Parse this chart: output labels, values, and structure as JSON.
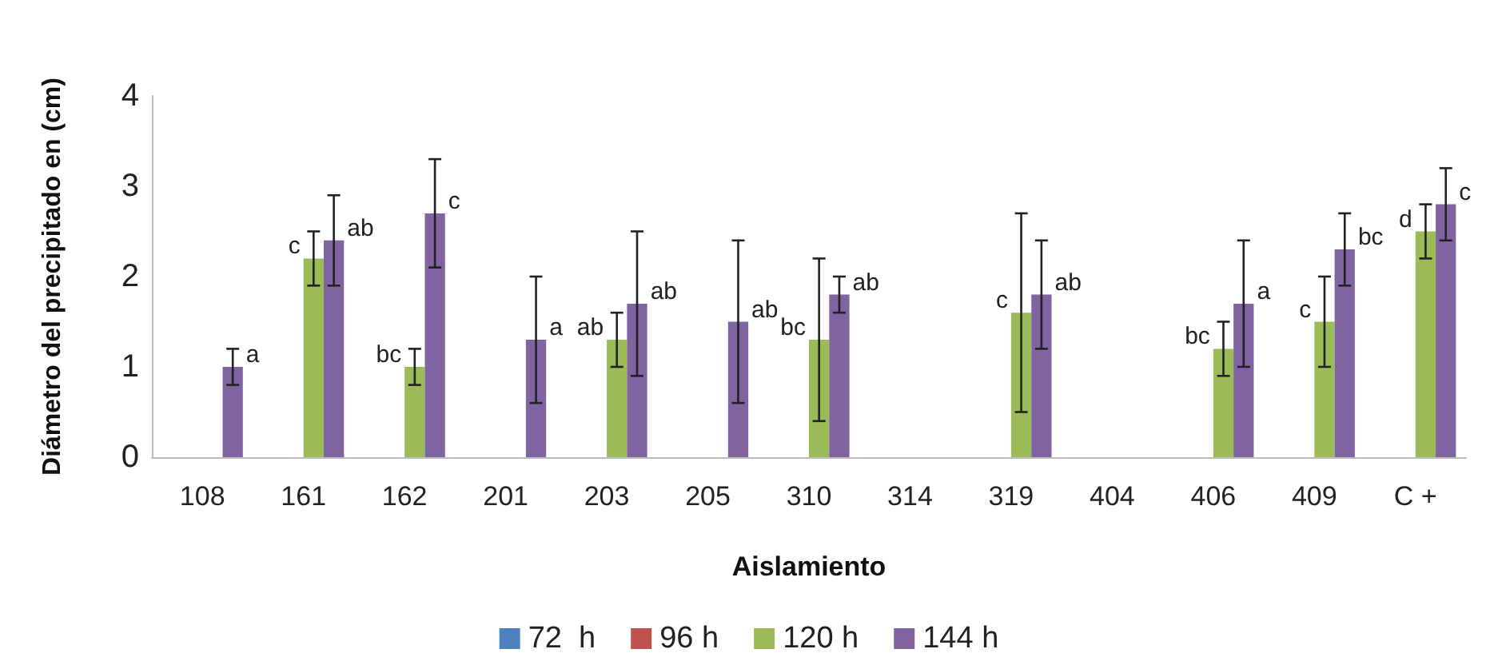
{
  "chart_data": {
    "type": "bar",
    "xlabel": "Aislamiento",
    "ylabel": "Diámetro del precipitado en (cm)",
    "categories": [
      "108",
      "161",
      "162",
      "201",
      "203",
      "205",
      "310",
      "314",
      "319",
      "404",
      "406",
      "409",
      "C +"
    ],
    "series": [
      {
        "name": "72  h",
        "color": "#4f81bd",
        "values": [
          null,
          null,
          null,
          null,
          null,
          null,
          null,
          null,
          null,
          null,
          null,
          null,
          null
        ]
      },
      {
        "name": "96 h",
        "color": "#c0504d",
        "values": [
          null,
          null,
          null,
          null,
          null,
          null,
          null,
          null,
          null,
          null,
          null,
          null,
          null
        ]
      },
      {
        "name": "120 h",
        "color": "#9bbb59",
        "values": [
          null,
          2.2,
          1.0,
          null,
          1.3,
          null,
          1.3,
          null,
          1.6,
          null,
          1.2,
          1.5,
          2.5
        ],
        "errors": [
          null,
          0.3,
          0.2,
          null,
          0.3,
          null,
          0.9,
          null,
          1.1,
          null,
          0.3,
          0.5,
          0.3
        ],
        "value_labels": [
          null,
          "c",
          "bc",
          null,
          "ab",
          null,
          "bc",
          null,
          "c",
          null,
          "bc",
          "c",
          "d"
        ]
      },
      {
        "name": "144 h",
        "color": "#8064a2",
        "values": [
          1.0,
          2.4,
          2.7,
          1.3,
          1.7,
          1.5,
          1.8,
          null,
          1.8,
          null,
          1.7,
          2.3,
          2.8
        ],
        "errors": [
          0.2,
          0.5,
          0.6,
          0.7,
          0.8,
          0.9,
          0.2,
          null,
          0.6,
          null,
          0.7,
          0.4,
          0.4
        ],
        "value_labels": [
          "a",
          "ab",
          "c",
          "a",
          "ab",
          "ab",
          "ab",
          null,
          "ab",
          null,
          "a",
          "bc",
          "c"
        ]
      }
    ],
    "ylim": [
      0,
      4
    ],
    "yticks": [
      0,
      1,
      2,
      3,
      4
    ],
    "grid": false,
    "legend": "bottom"
  }
}
